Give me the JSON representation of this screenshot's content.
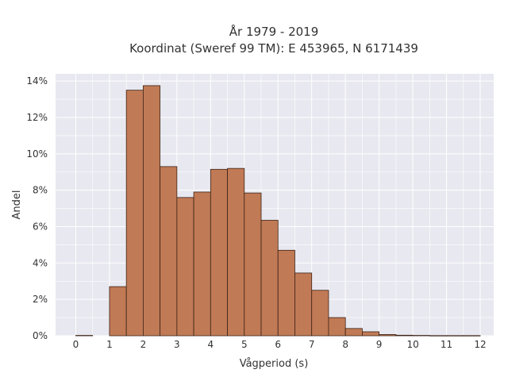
{
  "chart_data": {
    "type": "bar",
    "title": [
      "År 1979 - 2019",
      "Koordinat (Sweref 99 TM): E 453965, N 6171439"
    ],
    "xlabel": "Vågperiod (s)",
    "ylabel": "Andel",
    "x_ticks": [
      "0",
      "1",
      "2",
      "3",
      "4",
      "5",
      "6",
      "7",
      "8",
      "9",
      "10",
      "11",
      "12"
    ],
    "y_ticks": [
      "0%",
      "2%",
      "4%",
      "6%",
      "8%",
      "10%",
      "12%",
      "14%"
    ],
    "xlim": [
      -0.6,
      12.4
    ],
    "ylim": [
      0,
      14.4
    ],
    "grid": true,
    "bar_color": "#c07a55",
    "bar_edge_color": "#3d2418",
    "plot_background": "#e8e8f0",
    "bins": [
      {
        "x0": 0.0,
        "x1": 0.5,
        "value": 0.02
      },
      {
        "x0": 1.0,
        "x1": 1.5,
        "value": 2.7
      },
      {
        "x0": 1.5,
        "x1": 2.0,
        "value": 13.5
      },
      {
        "x0": 2.0,
        "x1": 2.5,
        "value": 13.75
      },
      {
        "x0": 2.5,
        "x1": 3.0,
        "value": 9.3
      },
      {
        "x0": 3.0,
        "x1": 3.5,
        "value": 7.6
      },
      {
        "x0": 3.5,
        "x1": 4.0,
        "value": 7.9
      },
      {
        "x0": 4.0,
        "x1": 4.5,
        "value": 9.15
      },
      {
        "x0": 4.5,
        "x1": 5.0,
        "value": 9.2
      },
      {
        "x0": 5.0,
        "x1": 5.5,
        "value": 7.85
      },
      {
        "x0": 5.5,
        "x1": 6.0,
        "value": 6.35
      },
      {
        "x0": 6.0,
        "x1": 6.5,
        "value": 4.7
      },
      {
        "x0": 6.5,
        "x1": 7.0,
        "value": 3.45
      },
      {
        "x0": 7.0,
        "x1": 7.5,
        "value": 2.5
      },
      {
        "x0": 7.5,
        "x1": 8.0,
        "value": 1.0
      },
      {
        "x0": 8.0,
        "x1": 8.5,
        "value": 0.4
      },
      {
        "x0": 8.5,
        "x1": 9.0,
        "value": 0.22
      },
      {
        "x0": 9.0,
        "x1": 9.5,
        "value": 0.07
      },
      {
        "x0": 9.5,
        "x1": 10.0,
        "value": 0.03
      },
      {
        "x0": 10.0,
        "x1": 10.5,
        "value": 0.02
      },
      {
        "x0": 10.5,
        "x1": 11.0,
        "value": 0.01
      },
      {
        "x0": 11.0,
        "x1": 11.5,
        "value": 0.01
      },
      {
        "x0": 11.5,
        "x1": 12.0,
        "value": 0.01
      }
    ]
  }
}
